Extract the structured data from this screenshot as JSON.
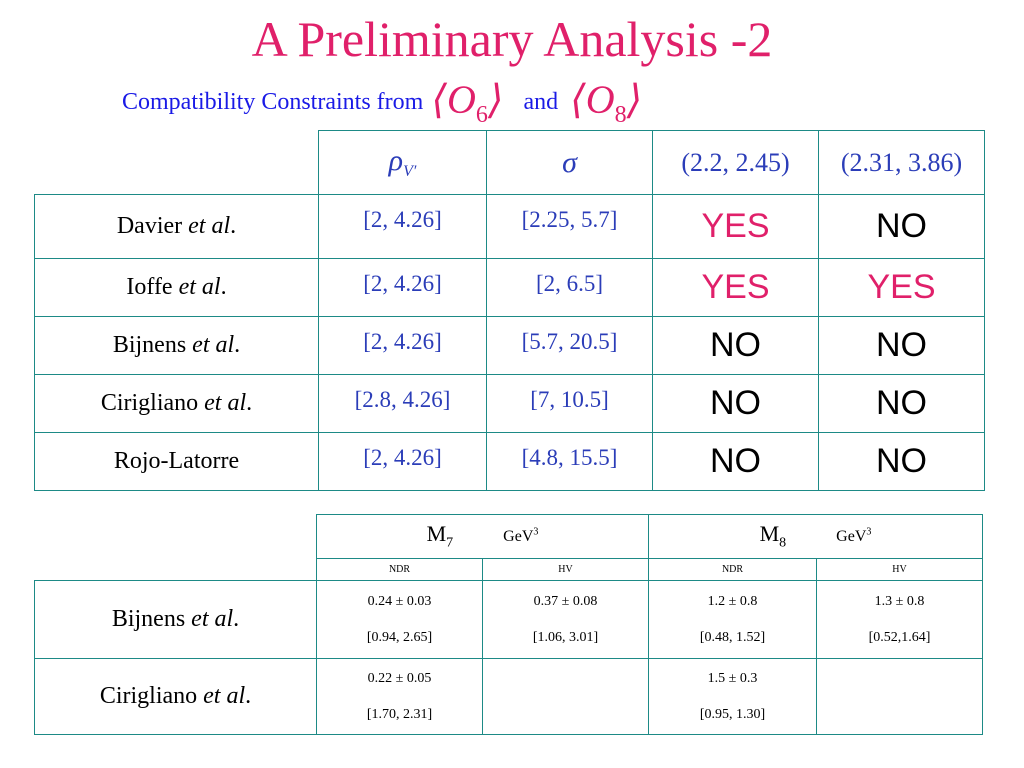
{
  "slide": {
    "title": "A Preliminary Analysis -2",
    "subtitle_prefix": "Compatibility Constraints from",
    "operator_o6": "O",
    "operator_o6_sub": "6",
    "subtitle_and": "and",
    "operator_o8": "O",
    "operator_o8_sub": "8"
  },
  "table1": {
    "headers": {
      "rho": "ρ",
      "rho_sub": "V′",
      "sigma": "σ",
      "range_a": "(2.2, 2.45)",
      "range_b": "(2.31, 3.86)"
    },
    "rows": [
      {
        "name": "Davier",
        "etal": "et al",
        "dot": ".",
        "rho": "[2, 4.26]",
        "sigma": "[2.25, 5.7]",
        "a": "YES",
        "b": "NO"
      },
      {
        "name": "Ioffe",
        "etal": "et al",
        "dot": ".",
        "rho": "[2, 4.26]",
        "sigma": "[2, 6.5]",
        "a": "YES",
        "b": "YES"
      },
      {
        "name": "Bijnens",
        "etal": "et al",
        "dot": ".",
        "rho": "[2, 4.26]",
        "sigma": "[5.7, 20.5]",
        "a": "NO",
        "b": "NO"
      },
      {
        "name": "Cirigliano",
        "etal": "et al",
        "dot": ".",
        "rho": "[2.8, 4.26]",
        "sigma": "[7, 10.5]",
        "a": "NO",
        "b": "NO"
      },
      {
        "name": "Rojo-Latorre",
        "etal": "",
        "dot": "",
        "rho": "[2, 4.26]",
        "sigma": "[4.8, 15.5]",
        "a": "NO",
        "b": "NO"
      }
    ],
    "colors": {
      "yes": "#e0206a",
      "no": "#000000",
      "range": "#2b3db8",
      "border": "#1d8a86"
    }
  },
  "table2": {
    "m7_label": "M",
    "m7_sub": "7",
    "m8_label": "M",
    "m8_sub": "8",
    "unit": "GeV",
    "unit_sup": "3",
    "schemes": [
      "NDR",
      "HV",
      "NDR",
      "HV"
    ],
    "rows": [
      {
        "name": "Bijnens",
        "etal": "et al",
        "dot": ".",
        "cells": [
          {
            "top": "0.24 ± 0.03",
            "bottom": "[0.94, 2.65]"
          },
          {
            "top": "0.37 ± 0.08",
            "bottom": "[1.06, 3.01]"
          },
          {
            "top": "1.2 ± 0.8",
            "bottom": "[0.48, 1.52]"
          },
          {
            "top": "1.3 ± 0.8",
            "bottom": "[0.52,1.64]"
          }
        ]
      },
      {
        "name": "Cirigliano",
        "etal": "et al",
        "dot": ".",
        "cells": [
          {
            "top": "0.22 ±  0.05",
            "bottom": "[1.70, 2.31]"
          },
          {
            "top": "",
            "bottom": ""
          },
          {
            "top": "1.5 ± 0.3",
            "bottom": "[0.95, 1.30]"
          },
          {
            "top": "",
            "bottom": ""
          }
        ]
      }
    ]
  }
}
